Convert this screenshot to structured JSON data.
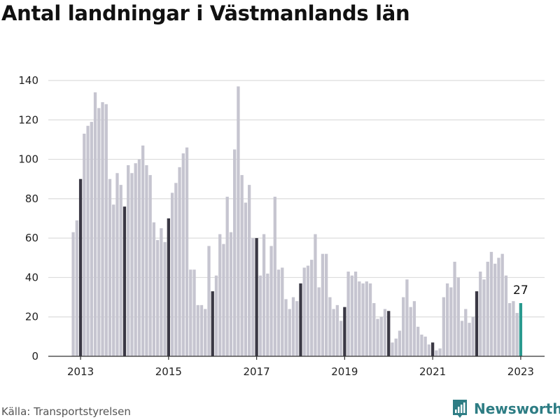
{
  "title": "Antal landningar i Västmanlands län",
  "source": "Källa: Transportstyrelsen",
  "brand": {
    "name": "Newsworthy",
    "icon": "newsworthy-logo-icon",
    "color": "#2e7d84"
  },
  "colors": {
    "bar": "#c6c5d0",
    "january": "#3a3844",
    "latest": "#2a9a8f",
    "grid": "#dcdcdc",
    "axis": "#333333"
  },
  "chart_data": {
    "type": "bar",
    "title": "Antal landningar i Västmanlands län",
    "xlabel": "",
    "ylabel": "",
    "ylim": [
      0,
      140
    ],
    "yticks": [
      0,
      20,
      40,
      60,
      80,
      100,
      120,
      140
    ],
    "xticks": [
      {
        "label": "2013",
        "index": 2
      },
      {
        "label": "2015",
        "index": 26
      },
      {
        "label": "2017",
        "index": 50
      },
      {
        "label": "2019",
        "index": 74
      },
      {
        "label": "2021",
        "index": 98
      },
      {
        "label": "2023",
        "index": 122
      }
    ],
    "grid": "horizontal",
    "start": "2012-11",
    "values": [
      63,
      69,
      90,
      113,
      117,
      119,
      134,
      126,
      129,
      128,
      90,
      77,
      93,
      87,
      76,
      97,
      93,
      98,
      100,
      107,
      97,
      92,
      68,
      59,
      65,
      58,
      70,
      83,
      88,
      96,
      103,
      106,
      44,
      44,
      26,
      26,
      24,
      56,
      33,
      41,
      62,
      57,
      81,
      63,
      105,
      137,
      92,
      78,
      87,
      60,
      60,
      41,
      62,
      42,
      56,
      81,
      44,
      45,
      29,
      24,
      30,
      28,
      37,
      45,
      46,
      49,
      62,
      35,
      52,
      52,
      30,
      24,
      26,
      18,
      25,
      43,
      41,
      43,
      38,
      37,
      38,
      37,
      27,
      19,
      20,
      24,
      23,
      7,
      9,
      13,
      30,
      39,
      25,
      28,
      15,
      11,
      10,
      6,
      7,
      3,
      4,
      30,
      37,
      35,
      48,
      40,
      18,
      24,
      17,
      20,
      33,
      43,
      39,
      48,
      53,
      47,
      50,
      52,
      41,
      27,
      28,
      22,
      27
    ],
    "highlight_january": true,
    "latest_label": "27"
  }
}
